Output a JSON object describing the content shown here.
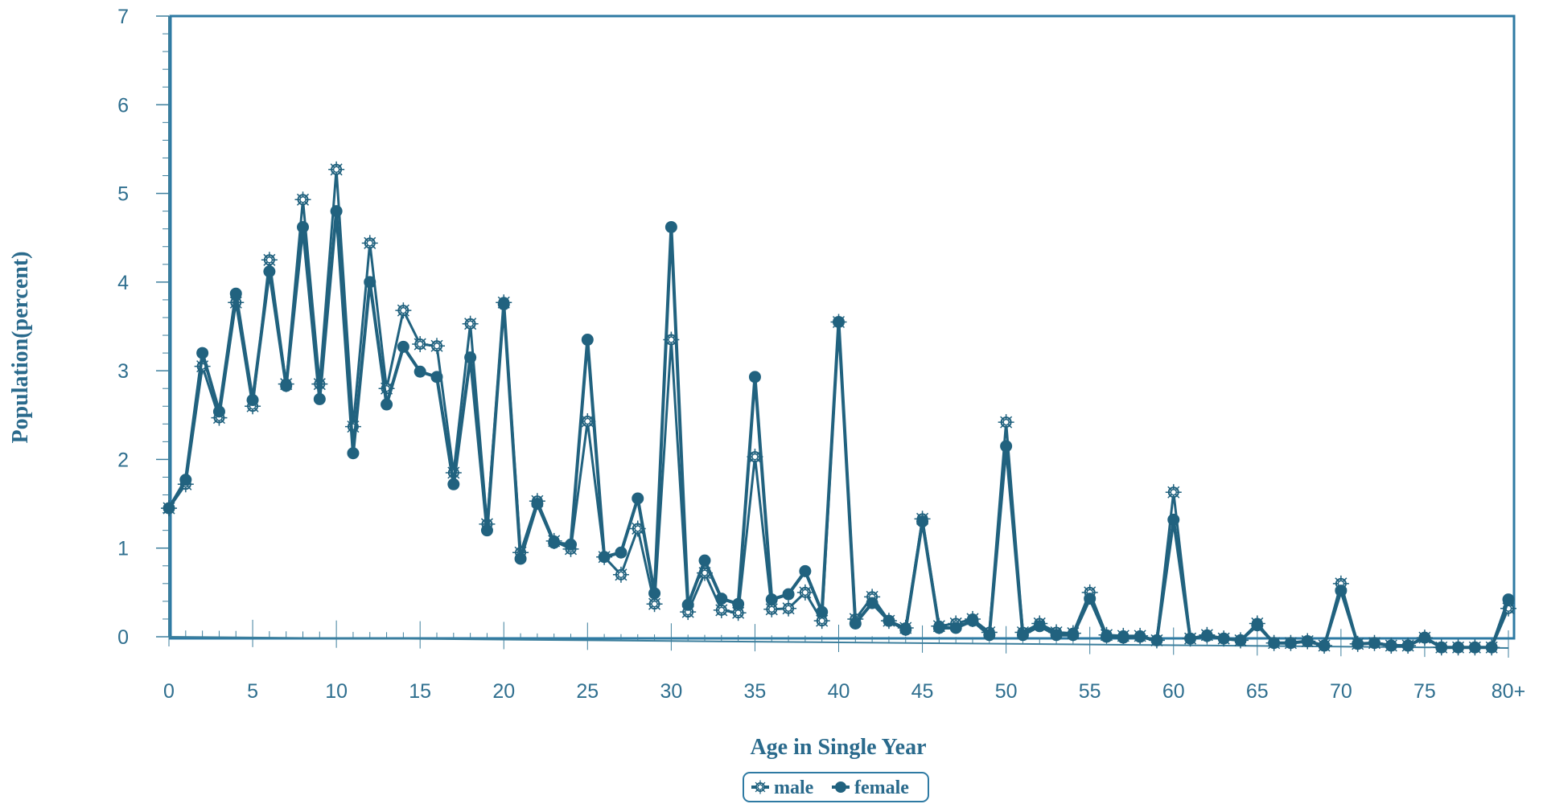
{
  "chart_data": {
    "type": "line",
    "title": "",
    "xlabel": "Age in Single Year",
    "ylabel": "Population(percent)",
    "ylim": [
      0,
      7
    ],
    "xlim": [
      0,
      80
    ],
    "yticks": [
      0,
      1,
      2,
      3,
      4,
      5,
      6,
      7
    ],
    "x_tick_positions": [
      0,
      5,
      10,
      15,
      20,
      25,
      30,
      35,
      40,
      45,
      50,
      55,
      60,
      65,
      70,
      75,
      80
    ],
    "x_tick_labels": [
      "0",
      "5",
      "10",
      "15",
      "20",
      "25",
      "30",
      "35",
      "40",
      "45",
      "50",
      "55",
      "60",
      "65",
      "70",
      "75",
      "80+"
    ],
    "x": [
      0,
      1,
      2,
      3,
      4,
      5,
      6,
      7,
      8,
      9,
      10,
      11,
      12,
      13,
      14,
      15,
      16,
      17,
      18,
      19,
      20,
      21,
      22,
      23,
      24,
      25,
      26,
      27,
      28,
      29,
      30,
      31,
      32,
      33,
      34,
      35,
      36,
      37,
      38,
      39,
      40,
      41,
      42,
      43,
      44,
      45,
      46,
      47,
      48,
      49,
      50,
      51,
      52,
      53,
      54,
      55,
      56,
      57,
      58,
      59,
      60,
      61,
      62,
      63,
      64,
      65,
      66,
      67,
      68,
      69,
      70,
      71,
      72,
      73,
      74,
      75,
      76,
      77,
      78,
      79,
      80
    ],
    "series": [
      {
        "name": "male",
        "marker": "sun",
        "values": [
          1.45,
          1.72,
          3.05,
          2.47,
          3.77,
          2.6,
          4.25,
          2.85,
          4.93,
          2.85,
          5.27,
          2.37,
          4.44,
          2.8,
          3.68,
          3.3,
          3.28,
          1.85,
          3.53,
          1.27,
          3.77,
          0.95,
          1.53,
          1.08,
          0.99,
          2.43,
          0.9,
          0.7,
          1.22,
          0.37,
          3.35,
          0.28,
          0.72,
          0.3,
          0.27,
          2.03,
          0.31,
          0.32,
          0.5,
          0.18,
          3.55,
          0.2,
          0.45,
          0.18,
          0.1,
          1.33,
          0.12,
          0.15,
          0.2,
          0.05,
          2.42,
          0.05,
          0.15,
          0.05,
          0.04,
          0.5,
          0.02,
          0.01,
          0.01,
          -0.04,
          1.63,
          -0.02,
          0.02,
          -0.02,
          -0.04,
          0.15,
          -0.07,
          -0.07,
          -0.05,
          -0.1,
          0.6,
          -0.08,
          -0.07,
          -0.1,
          -0.1,
          -0.01,
          -0.12,
          -0.12,
          -0.12,
          -0.12,
          0.32
        ]
      },
      {
        "name": "female",
        "marker": "dot",
        "values": [
          1.45,
          1.77,
          3.2,
          2.54,
          3.87,
          2.67,
          4.12,
          2.83,
          4.62,
          2.68,
          4.8,
          2.07,
          4.0,
          2.62,
          3.27,
          2.99,
          2.93,
          1.72,
          3.15,
          1.2,
          3.75,
          0.88,
          1.5,
          1.06,
          1.04,
          3.35,
          0.9,
          0.95,
          1.56,
          0.49,
          4.62,
          0.36,
          0.86,
          0.43,
          0.37,
          2.93,
          0.42,
          0.48,
          0.74,
          0.28,
          3.55,
          0.15,
          0.38,
          0.18,
          0.08,
          1.3,
          0.1,
          0.1,
          0.18,
          0.02,
          2.15,
          0.02,
          0.12,
          0.02,
          0.02,
          0.43,
          0.0,
          -0.01,
          0.0,
          -0.04,
          1.32,
          -0.02,
          0.01,
          -0.02,
          -0.04,
          0.13,
          -0.07,
          -0.07,
          -0.05,
          -0.1,
          0.52,
          -0.08,
          -0.07,
          -0.1,
          -0.1,
          -0.01,
          -0.12,
          -0.12,
          -0.12,
          -0.12,
          0.42
        ]
      }
    ],
    "legend": {
      "position": "bottom-center",
      "entries": [
        "male",
        "female"
      ]
    },
    "grid": false,
    "colors": {
      "line": "#21627f",
      "axis": "#3d7f9d",
      "frame": "#2e7aa3",
      "text": "#2a6a8c"
    }
  }
}
